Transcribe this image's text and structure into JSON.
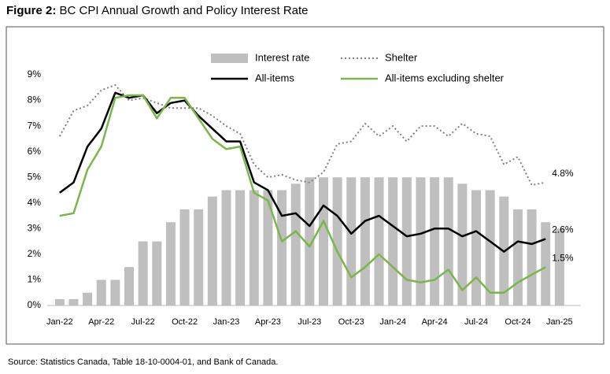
{
  "chart_data": {
    "type": "bar-line",
    "figure_label": "Figure 2:",
    "title": "BC CPI Annual Growth and Policy Interest Rate",
    "source": "Source: Statistics Canada, Table 18-10-0004-01, and Bank of Canada.",
    "categories": [
      "Jan-22",
      null,
      null,
      "Apr-22",
      null,
      null,
      "Jul-22",
      null,
      null,
      "Oct-22",
      null,
      null,
      "Jan-23",
      null,
      null,
      "Apr-23",
      null,
      null,
      "Jul-23",
      null,
      null,
      "Oct-23",
      null,
      null,
      "Jan-24",
      null,
      null,
      "Apr-24",
      null,
      null,
      "Jul-24",
      null,
      null,
      "Oct-24",
      null,
      null,
      "Jan-25"
    ],
    "ylim": [
      0,
      9
    ],
    "yticks": [
      {
        "value": 0,
        "label": "0%"
      },
      {
        "value": 1,
        "label": "1%"
      },
      {
        "value": 2,
        "label": "2%"
      },
      {
        "value": 3,
        "label": "3%"
      },
      {
        "value": 4,
        "label": "4%"
      },
      {
        "value": 5,
        "label": "5%"
      },
      {
        "value": 6,
        "label": "6%"
      },
      {
        "value": 7,
        "label": "7%"
      },
      {
        "value": 8,
        "label": "8%"
      },
      {
        "value": 9,
        "label": "9%"
      }
    ],
    "series": [
      {
        "name": "Interest rate",
        "kind": "bar",
        "color": "#bfbfbf",
        "values": [
          0.25,
          0.25,
          0.5,
          1.0,
          1.0,
          1.5,
          2.5,
          2.5,
          3.25,
          3.75,
          3.75,
          4.25,
          4.5,
          4.5,
          4.5,
          4.5,
          4.5,
          4.75,
          5.0,
          5.0,
          5.0,
          5.0,
          5.0,
          5.0,
          5.0,
          5.0,
          5.0,
          5.0,
          5.0,
          4.75,
          4.5,
          4.5,
          4.25,
          3.75,
          3.75,
          3.25,
          3.0
        ]
      },
      {
        "name": "Shelter",
        "kind": "line",
        "dash": "dotted",
        "color": "#808080",
        "values": [
          6.6,
          7.6,
          7.8,
          8.4,
          8.6,
          8.0,
          8.1,
          7.9,
          7.7,
          7.7,
          7.7,
          7.4,
          7.0,
          6.7,
          5.5,
          5.0,
          5.1,
          4.9,
          4.8,
          5.2,
          6.3,
          6.4,
          7.1,
          6.6,
          7.0,
          6.4,
          7.0,
          7.0,
          6.6,
          7.1,
          6.7,
          6.6,
          5.5,
          5.8,
          4.7,
          4.8,
          null
        ],
        "end_label": "4.8%"
      },
      {
        "name": "All-items",
        "kind": "line",
        "color": "#000000",
        "values": [
          4.4,
          4.8,
          6.2,
          6.9,
          8.3,
          8.1,
          8.2,
          7.5,
          7.9,
          8.0,
          7.4,
          6.9,
          6.4,
          6.4,
          4.8,
          4.5,
          3.5,
          3.6,
          3.1,
          3.9,
          3.5,
          2.8,
          3.3,
          3.5,
          3.1,
          2.7,
          2.8,
          3.0,
          3.0,
          2.7,
          2.9,
          2.5,
          2.1,
          2.5,
          2.4,
          2.6,
          null
        ],
        "end_label": "2.6%"
      },
      {
        "name": "All-items excluding shelter",
        "kind": "line",
        "color": "#7ab648",
        "values": [
          3.5,
          3.6,
          5.3,
          6.2,
          8.1,
          8.2,
          8.2,
          7.3,
          8.1,
          8.1,
          7.3,
          6.5,
          6.1,
          6.2,
          4.4,
          4.1,
          2.5,
          2.9,
          2.3,
          3.3,
          2.1,
          1.1,
          1.5,
          2.0,
          1.5,
          1.0,
          0.9,
          1.0,
          1.4,
          0.6,
          1.1,
          0.5,
          0.5,
          0.9,
          1.2,
          1.5,
          null
        ],
        "end_label": "1.5%"
      }
    ]
  }
}
